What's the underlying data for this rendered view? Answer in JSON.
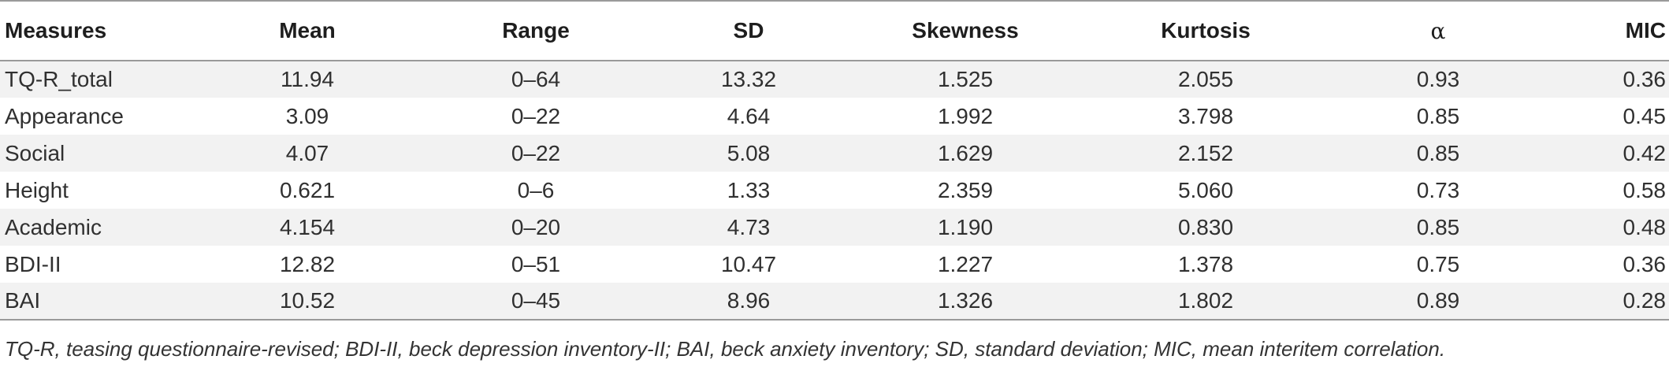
{
  "table": {
    "headers": [
      "Measures",
      "Mean",
      "Range",
      "SD",
      "Skewness",
      "Kurtosis",
      "α",
      "MIC"
    ],
    "rows": [
      [
        "TQ-R_total",
        "11.94",
        "0–64",
        "13.32",
        "1.525",
        "2.055",
        "0.93",
        "0.36"
      ],
      [
        "Appearance",
        "3.09",
        "0–22",
        "4.64",
        "1.992",
        "3.798",
        "0.85",
        "0.45"
      ],
      [
        "Social",
        "4.07",
        "0–22",
        "5.08",
        "1.629",
        "2.152",
        "0.85",
        "0.42"
      ],
      [
        "Height",
        "0.621",
        "0–6",
        "1.33",
        "2.359",
        "5.060",
        "0.73",
        "0.58"
      ],
      [
        "Academic",
        "4.154",
        "0–20",
        "4.73",
        "1.190",
        "0.830",
        "0.85",
        "0.48"
      ],
      [
        "BDI-II",
        "12.82",
        "0–51",
        "10.47",
        "1.227",
        "1.378",
        "0.75",
        "0.36"
      ],
      [
        "BAI",
        "10.52",
        "0–45",
        "8.96",
        "1.326",
        "1.802",
        "0.89",
        "0.28"
      ]
    ]
  },
  "footnote": "TQ-R, teasing questionnaire-revised; BDI-II, beck depression inventory-II; BAI, beck anxiety inventory; SD, standard deviation; MIC, mean interitem correlation."
}
